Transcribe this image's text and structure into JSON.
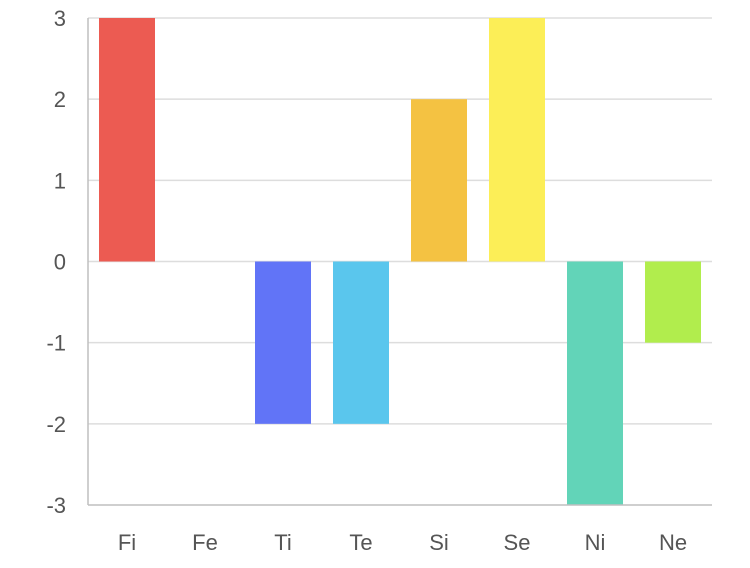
{
  "chart_data": {
    "type": "bar",
    "categories": [
      "Fi",
      "Fe",
      "Ti",
      "Te",
      "Si",
      "Se",
      "Ni",
      "Ne"
    ],
    "values": [
      3,
      0,
      -2,
      -2,
      2,
      3,
      -3,
      -1
    ],
    "colors": [
      "#ec5b52",
      "#ec5b52",
      "#6174f7",
      "#5ac6ed",
      "#f4c242",
      "#fcee57",
      "#62d4b8",
      "#b1ed4d"
    ],
    "ylim": [
      -3,
      3
    ],
    "yticks": [
      "3",
      "2",
      "1",
      "0",
      "-1",
      "-2",
      "-3"
    ],
    "grid": true,
    "legend": "none"
  }
}
